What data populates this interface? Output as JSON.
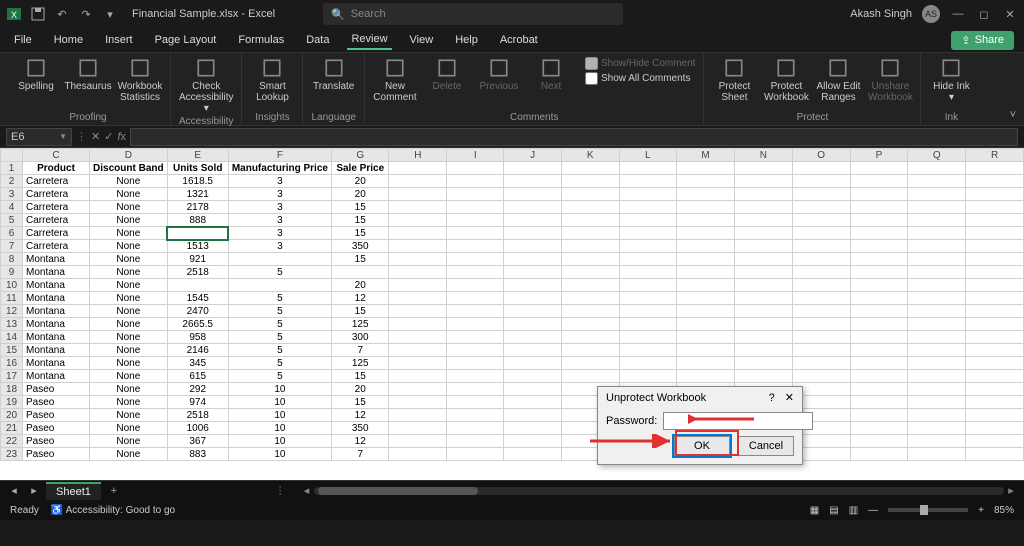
{
  "titlebar": {
    "doc_title": "Financial Sample.xlsx - Excel",
    "search_placeholder": "Search",
    "user_name": "Akash Singh",
    "user_initials": "AS"
  },
  "menu": {
    "items": [
      "File",
      "Home",
      "Insert",
      "Page Layout",
      "Formulas",
      "Data",
      "Review",
      "View",
      "Help",
      "Acrobat"
    ],
    "active": "Review",
    "share_label": "Share"
  },
  "ribbon": {
    "groups": [
      {
        "label": "Proofing",
        "buttons": [
          {
            "label": "Spelling"
          },
          {
            "label": "Thesaurus"
          },
          {
            "label": "Workbook Statistics"
          }
        ]
      },
      {
        "label": "Accessibility",
        "buttons": [
          {
            "label": "Check Accessibility ▾"
          }
        ]
      },
      {
        "label": "Insights",
        "buttons": [
          {
            "label": "Smart Lookup"
          }
        ]
      },
      {
        "label": "Language",
        "buttons": [
          {
            "label": "Translate"
          }
        ]
      },
      {
        "label": "Comments",
        "buttons": [
          {
            "label": "New Comment"
          },
          {
            "label": "Delete",
            "disabled": true
          },
          {
            "label": "Previous",
            "disabled": true
          },
          {
            "label": "Next",
            "disabled": true
          }
        ],
        "side": [
          {
            "label": "Show/Hide Comment",
            "disabled": true
          },
          {
            "label": "Show All Comments"
          }
        ]
      },
      {
        "label": "Protect",
        "buttons": [
          {
            "label": "Protect Sheet"
          },
          {
            "label": "Protect Workbook"
          },
          {
            "label": "Allow Edit Ranges"
          },
          {
            "label": "Unshare Workbook",
            "disabled": true
          }
        ]
      },
      {
        "label": "Ink",
        "buttons": [
          {
            "label": "Hide Ink ▾"
          }
        ]
      }
    ]
  },
  "fbar": {
    "namebox": "E6"
  },
  "columns": [
    "C",
    "D",
    "E",
    "F",
    "G",
    "H",
    "I",
    "J",
    "K",
    "L",
    "M",
    "N",
    "O",
    "P",
    "Q",
    "R"
  ],
  "headers": {
    "C": "Product",
    "D": "Discount Band",
    "E": "Units Sold",
    "F": "Manufacturing Price",
    "G": "Sale Price"
  },
  "selected": {
    "row": 6,
    "col": "E"
  },
  "rows": [
    {
      "n": 1,
      "head": true
    },
    {
      "n": 2,
      "C": "Carretera",
      "D": "None",
      "E": "1618.5",
      "F": "3",
      "G": "20"
    },
    {
      "n": 3,
      "C": "Carretera",
      "D": "None",
      "E": "1321",
      "F": "3",
      "G": "20"
    },
    {
      "n": 4,
      "C": "Carretera",
      "D": "None",
      "E": "2178",
      "F": "3",
      "G": "15"
    },
    {
      "n": 5,
      "C": "Carretera",
      "D": "None",
      "E": "888",
      "F": "3",
      "G": "15"
    },
    {
      "n": 6,
      "C": "Carretera",
      "D": "None",
      "E": "",
      "F": "3",
      "G": "15"
    },
    {
      "n": 7,
      "C": "Carretera",
      "D": "None",
      "E": "1513",
      "F": "3",
      "G": "350"
    },
    {
      "n": 8,
      "C": "Montana",
      "D": "None",
      "E": "921",
      "F": "",
      "G": "15"
    },
    {
      "n": 9,
      "C": "Montana",
      "D": "None",
      "E": "2518",
      "F": "5",
      "G": ""
    },
    {
      "n": 10,
      "C": "Montana",
      "D": "None",
      "E": "",
      "F": "",
      "G": "20"
    },
    {
      "n": 11,
      "C": "Montana",
      "D": "None",
      "E": "1545",
      "F": "5",
      "G": "12"
    },
    {
      "n": 12,
      "C": "Montana",
      "D": "None",
      "E": "2470",
      "F": "5",
      "G": "15"
    },
    {
      "n": 13,
      "C": "Montana",
      "D": "None",
      "E": "2665.5",
      "F": "5",
      "G": "125"
    },
    {
      "n": 14,
      "C": "Montana",
      "D": "None",
      "E": "958",
      "F": "5",
      "G": "300"
    },
    {
      "n": 15,
      "C": "Montana",
      "D": "None",
      "E": "2146",
      "F": "5",
      "G": "7"
    },
    {
      "n": 16,
      "C": "Montana",
      "D": "None",
      "E": "345",
      "F": "5",
      "G": "125"
    },
    {
      "n": 17,
      "C": "Montana",
      "D": "None",
      "E": "615",
      "F": "5",
      "G": "15"
    },
    {
      "n": 18,
      "C": "Paseo",
      "D": "None",
      "E": "292",
      "F": "10",
      "G": "20"
    },
    {
      "n": 19,
      "C": "Paseo",
      "D": "None",
      "E": "974",
      "F": "10",
      "G": "15"
    },
    {
      "n": 20,
      "C": "Paseo",
      "D": "None",
      "E": "2518",
      "F": "10",
      "G": "12"
    },
    {
      "n": 21,
      "C": "Paseo",
      "D": "None",
      "E": "1006",
      "F": "10",
      "G": "350"
    },
    {
      "n": 22,
      "C": "Paseo",
      "D": "None",
      "E": "367",
      "F": "10",
      "G": "12"
    },
    {
      "n": 23,
      "C": "Paseo",
      "D": "None",
      "E": "883",
      "F": "10",
      "G": "7"
    }
  ],
  "tabs": {
    "sheet": "Sheet1"
  },
  "status": {
    "ready": "Ready",
    "acc": "Accessibility: Good to go",
    "zoom": "85%"
  },
  "dialog": {
    "title": "Unprotect Workbook",
    "pw_label": "Password:",
    "pw_value": "",
    "ok": "OK",
    "cancel": "Cancel"
  }
}
